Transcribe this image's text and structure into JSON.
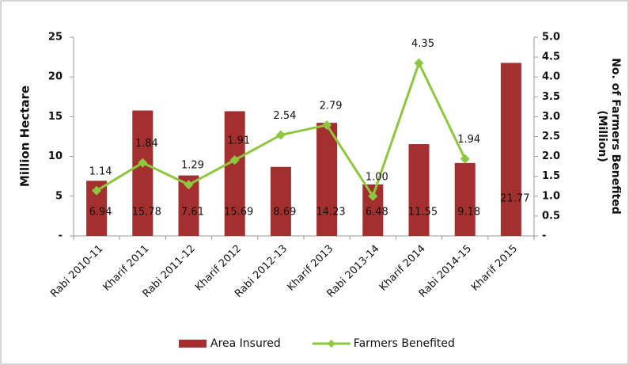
{
  "chart_data": {
    "type": "bar-line",
    "categories": [
      "Rabi 2010-11",
      "Kharif 2011",
      "Rabi 2011-12",
      "Kharif 2012",
      "Rabi 2012-13",
      "Kharif 2013",
      "Rabi 2013-14",
      "Kharif 2014",
      "Rabi 2014-15",
      "Kharif 2015"
    ],
    "series": [
      {
        "name": "Area Insured",
        "type": "bar",
        "color": "#a3302e",
        "values": [
          6.94,
          15.78,
          7.61,
          15.69,
          8.69,
          14.23,
          6.48,
          11.55,
          9.18,
          21.77
        ]
      },
      {
        "name": "Farmers Benefited",
        "type": "line",
        "axis": "y2",
        "color": "#8dc63f",
        "values": [
          1.14,
          1.84,
          1.29,
          1.91,
          2.54,
          2.79,
          1.0,
          4.35,
          1.94,
          null
        ],
        "value_labels": [
          "1.14",
          "1.84",
          "1.29",
          "1.91",
          "2.54",
          "2.79",
          "1.00",
          "4.35",
          "1.94",
          null
        ]
      }
    ],
    "ylabel": "Million Hectare",
    "y2label": "No. of Farmers Benefited (Million)",
    "ylim": [
      0,
      25
    ],
    "yticks": [
      {
        "value": 0,
        "label": "-"
      },
      5,
      10,
      15,
      20,
      25
    ],
    "y2lim": [
      0,
      5
    ],
    "y2ticks": [
      {
        "value": 0,
        "label": "-"
      },
      0.5,
      {
        "value": 1,
        "label": "1.0"
      },
      1.5,
      {
        "value": 2,
        "label": "2.0"
      },
      2.5,
      {
        "value": 3,
        "label": "3.0"
      },
      3.5,
      {
        "value": 4,
        "label": "4.0"
      },
      4.5,
      {
        "value": 5,
        "label": "5.0"
      }
    ],
    "legend": "bottom"
  }
}
